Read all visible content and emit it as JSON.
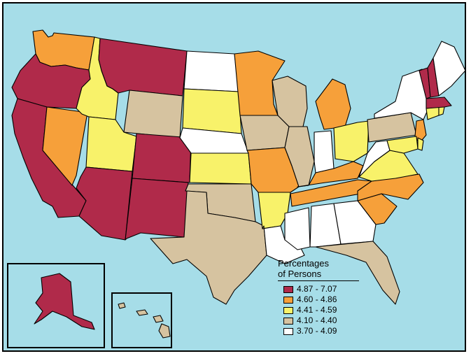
{
  "colors": {
    "water": "#a6dde8",
    "c1": "#b02a4a",
    "c2": "#f6a03a",
    "c3": "#f8f26a",
    "c4": "#d6c3a0",
    "c5": "#ffffff"
  },
  "legend": {
    "title_line1": "Percentages",
    "title_line2": "of Persons",
    "items": [
      {
        "label": "4.87 - 7.07",
        "color": "#b02a4a"
      },
      {
        "label": "4.60 - 4.86",
        "color": "#f6a03a"
      },
      {
        "label": "4.41 - 4.59",
        "color": "#f8f26a"
      },
      {
        "label": "4.10 - 4.40",
        "color": "#d6c3a0"
      },
      {
        "label": "3.70 - 4.09",
        "color": "#ffffff"
      }
    ]
  },
  "states": [
    {
      "name": "WA",
      "cls": 2
    },
    {
      "name": "OR",
      "cls": 1
    },
    {
      "name": "CA",
      "cls": 1
    },
    {
      "name": "NV",
      "cls": 2
    },
    {
      "name": "ID",
      "cls": 3
    },
    {
      "name": "MT",
      "cls": 1
    },
    {
      "name": "WY",
      "cls": 4
    },
    {
      "name": "UT",
      "cls": 3
    },
    {
      "name": "AZ",
      "cls": 1
    },
    {
      "name": "CO",
      "cls": 1
    },
    {
      "name": "NM",
      "cls": 1
    },
    {
      "name": "ND",
      "cls": 5
    },
    {
      "name": "SD",
      "cls": 3
    },
    {
      "name": "NE",
      "cls": 5
    },
    {
      "name": "KS",
      "cls": 3
    },
    {
      "name": "OK",
      "cls": 4
    },
    {
      "name": "TX",
      "cls": 4
    },
    {
      "name": "MN",
      "cls": 2
    },
    {
      "name": "IA",
      "cls": 4
    },
    {
      "name": "MO",
      "cls": 2
    },
    {
      "name": "AR",
      "cls": 3
    },
    {
      "name": "LA",
      "cls": 5
    },
    {
      "name": "WI",
      "cls": 4
    },
    {
      "name": "IL",
      "cls": 4
    },
    {
      "name": "MI",
      "cls": 2
    },
    {
      "name": "IN",
      "cls": 5
    },
    {
      "name": "OH",
      "cls": 3
    },
    {
      "name": "KY",
      "cls": 2
    },
    {
      "name": "TN",
      "cls": 2
    },
    {
      "name": "MS",
      "cls": 5
    },
    {
      "name": "AL",
      "cls": 5
    },
    {
      "name": "GA",
      "cls": 5
    },
    {
      "name": "FL",
      "cls": 4
    },
    {
      "name": "SC",
      "cls": 2
    },
    {
      "name": "NC",
      "cls": 2
    },
    {
      "name": "VA",
      "cls": 3
    },
    {
      "name": "WV",
      "cls": 5
    },
    {
      "name": "PA",
      "cls": 4
    },
    {
      "name": "NY",
      "cls": 5
    },
    {
      "name": "NJ",
      "cls": 2
    },
    {
      "name": "MD",
      "cls": 3
    },
    {
      "name": "DE",
      "cls": 3
    },
    {
      "name": "CT",
      "cls": 3
    },
    {
      "name": "RI",
      "cls": 3
    },
    {
      "name": "MA",
      "cls": 1
    },
    {
      "name": "VT",
      "cls": 1
    },
    {
      "name": "NH",
      "cls": 1
    },
    {
      "name": "ME",
      "cls": 5
    },
    {
      "name": "AK",
      "cls": 1
    },
    {
      "name": "HI",
      "cls": 4
    }
  ]
}
